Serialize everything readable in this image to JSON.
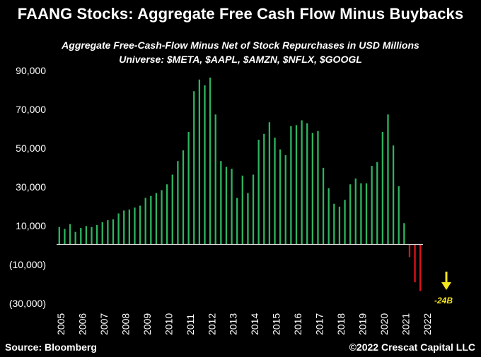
{
  "header": {
    "title": "FAANG Stocks: Aggregate Free Cash Flow Minus Buybacks",
    "subtitle_line1": "Aggregate Free-Cash-Flow Minus Net of Stock Repurchases in USD Millions",
    "subtitle_line2": "Universe: $META, $AAPL, $AMZN, $NFLX, $GOOGL"
  },
  "footer": {
    "source": "Source: Bloomberg",
    "copyright": "©2022 Crescat Capital LLC"
  },
  "annotation": {
    "label": "-24B",
    "color": "#f5e51d"
  },
  "colors": {
    "positive": "#2db560",
    "negative": "#e0121a",
    "axis": "#d9d9d9"
  },
  "chart_data": {
    "type": "bar",
    "title": "FAANG Stocks: Aggregate Free Cash Flow Minus Buybacks",
    "ylabel": "USD Millions",
    "xlabel": "",
    "ylim": [
      -30000,
      90000
    ],
    "yticks": [
      90000,
      70000,
      50000,
      30000,
      10000,
      -10000,
      -30000
    ],
    "ytick_labels": [
      "90,000",
      "70,000",
      "50,000",
      "30,000",
      "10,000",
      "(10,000)",
      "(30,000)"
    ],
    "x_tick_labels": [
      "2005",
      "2006",
      "2007",
      "2008",
      "2009",
      "2010",
      "2011",
      "2012",
      "2013",
      "2014",
      "2015",
      "2016",
      "2017",
      "2018",
      "2019",
      "2020",
      "2021",
      "2022"
    ],
    "frequency": "quarterly",
    "series": [
      {
        "name": "Aggregate FCF minus net buybacks",
        "values": [
          9000,
          8000,
          10500,
          6500,
          8500,
          9500,
          9000,
          10000,
          11500,
          12500,
          13000,
          16000,
          17500,
          18000,
          19000,
          20000,
          24000,
          25000,
          26500,
          28000,
          31000,
          36000,
          43000,
          48500,
          58000,
          79000,
          85000,
          82000,
          86000,
          67000,
          43000,
          40000,
          39000,
          24000,
          35500,
          26500,
          36000,
          54000,
          57000,
          63000,
          55000,
          49000,
          46000,
          61000,
          61500,
          64000,
          62500,
          57500,
          58500,
          39500,
          29000,
          21000,
          19500,
          23000,
          31000,
          34000,
          31500,
          31500,
          40500,
          42500,
          58000,
          67000,
          51000,
          30000,
          11000,
          -6500,
          -19500,
          -24000
        ]
      }
    ]
  }
}
